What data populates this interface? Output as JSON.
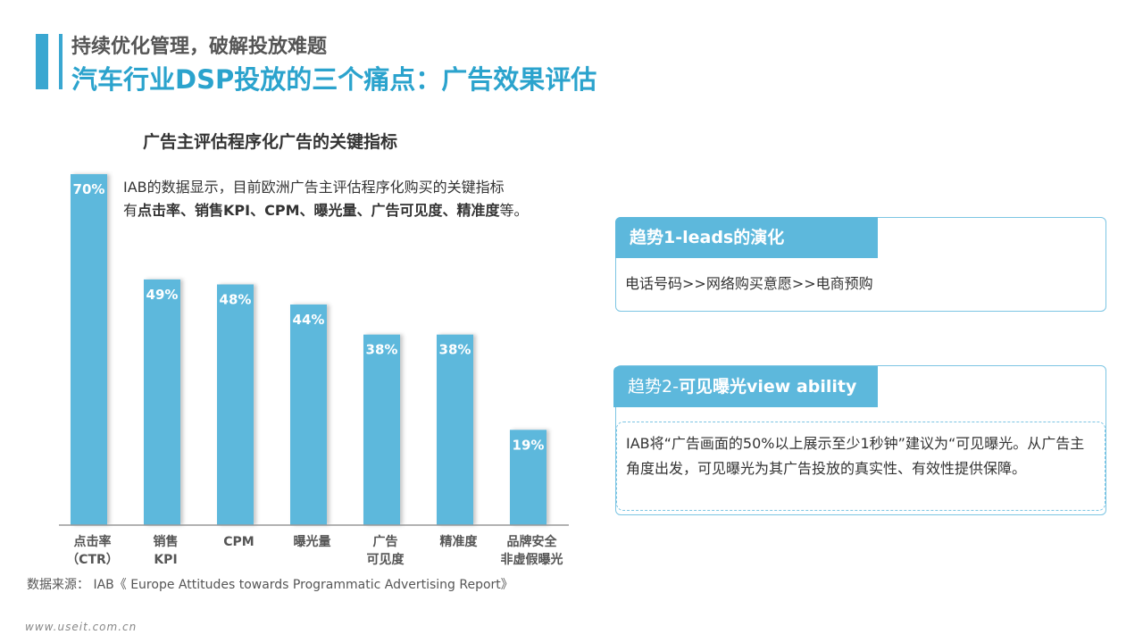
{
  "header": {
    "subtitle": "持续优化管理，破解投放难题",
    "title": "汽车行业DSP投放的三个痛点：广告效果评估"
  },
  "chart_data": {
    "type": "bar",
    "title": "广告主评估程序化广告的关键指标",
    "categories": [
      [
        "点击率",
        "（CTR）"
      ],
      [
        "销售",
        "KPI"
      ],
      [
        "CPM"
      ],
      [
        "曝光量"
      ],
      [
        "广告",
        "可见度"
      ],
      [
        "精准度"
      ],
      [
        "品牌安全",
        "非虚假曝光"
      ]
    ],
    "values": [
      70,
      49,
      48,
      44,
      38,
      38,
      19
    ],
    "value_labels": [
      "70%",
      "49%",
      "48%",
      "44%",
      "38%",
      "38%",
      "19%"
    ],
    "ylim": [
      0,
      70
    ],
    "bar_color": "#5db8dc",
    "grid": false
  },
  "note": {
    "line1": "IAB的数据显示，目前欧洲广告主评估程序化购买的关键指标",
    "line2_prefix": "有",
    "line2_bold": "点击率、销售KPI、CPM、曝光量、广告可见度、精准度",
    "line2_suffix": "等。"
  },
  "source": "数据来源： IAB《 Europe Attitudes towards Programmatic Advertising Report》",
  "site": "www.useit.com.cn",
  "trend1": {
    "tab": "趋势1-leads的演化",
    "text": "电话号码>>网络购买意愿>>电商预购"
  },
  "trend2": {
    "tab_prefix": "趋势2-",
    "tab_bold": "可见曝光view ability",
    "text": "IAB将“广告画面的50%以上展示至少1秒钟”建议为“可见曝光。从广告主角度出发，可见曝光为其广告投放的真实性、有效性提供保障。"
  },
  "colors": {
    "accent": "#2ba3cd",
    "bar": "#5db8dc",
    "border": "#7cc5e3"
  }
}
